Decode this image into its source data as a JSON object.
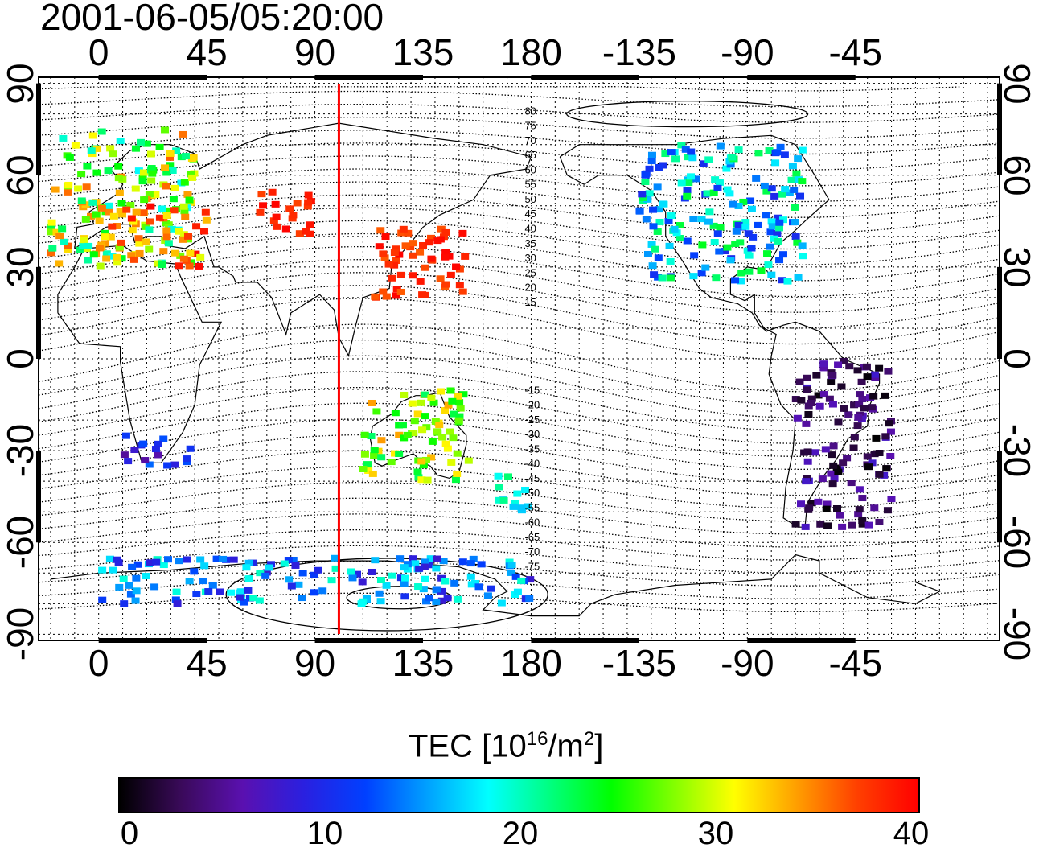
{
  "title": "2001-06-05/05:20:00",
  "axes": {
    "lon_ticks_top": [
      "0",
      "45",
      "90",
      "135",
      "180",
      "-135",
      "-90",
      "-45"
    ],
    "lon_ticks_bottom": [
      "0",
      "45",
      "90",
      "135",
      "180",
      "-135",
      "-90",
      "-45"
    ],
    "lat_ticks_left": [
      "90",
      "60",
      "30",
      "0",
      "-30",
      "-60",
      "-90"
    ],
    "lat_ticks_right": [
      "90",
      "60",
      "30",
      "0",
      "-30",
      "-60",
      "-90"
    ],
    "lon_range": [
      -25,
      375
    ],
    "lat_range": [
      -92,
      92
    ],
    "grid": "dotted every 10 degrees"
  },
  "contour_labels": [
    "80",
    "75",
    "70",
    "65",
    "60",
    "55",
    "50",
    "45",
    "40",
    "35",
    "30",
    "25",
    "20",
    "15",
    "-15",
    "-20",
    "-25",
    "-30",
    "-35",
    "-40",
    "-45",
    "-50",
    "-55",
    "-60",
    "-65",
    "-70",
    "-75"
  ],
  "terminator": {
    "longitude": 100,
    "color": "#ff0000"
  },
  "colorbar": {
    "label_prefix": "TEC  [10",
    "label_sup1": "16",
    "label_mid": "/m",
    "label_sup2": "2",
    "label_suffix": "]",
    "ticks": [
      "0",
      "10",
      "20",
      "30",
      "40"
    ],
    "range": [
      0,
      40
    ],
    "colormap": [
      "#000000",
      "#3a0a5a",
      "#5a10b0",
      "#2a20e0",
      "#0040ff",
      "#00a0ff",
      "#00ffff",
      "#00ff80",
      "#00ff00",
      "#80ff00",
      "#ffff00",
      "#ffa000",
      "#ff4000",
      "#ff0000"
    ]
  },
  "chart_data": {
    "type": "map",
    "title": "2001-06-05/05:20:00",
    "xlabel": "",
    "ylabel": "",
    "x_range": [
      -25,
      375
    ],
    "y_range": [
      -92,
      92
    ],
    "legend": "bottom colorbar",
    "regions": [
      {
        "lon": [
          -20,
          40
        ],
        "lat": [
          30,
          75
        ],
        "tec_range": [
          18,
          36
        ]
      },
      {
        "lon": [
          0,
          45
        ],
        "lat": [
          30,
          50
        ],
        "tec_range": [
          30,
          40
        ]
      },
      {
        "lon": [
          65,
          90
        ],
        "lat": [
          40,
          55
        ],
        "tec_range": [
          36,
          40
        ]
      },
      {
        "lon": [
          115,
          155
        ],
        "lat": [
          20,
          45
        ],
        "tec_range": [
          36,
          40
        ]
      },
      {
        "lon": [
          225,
          295
        ],
        "lat": [
          25,
          70
        ],
        "tec_range": [
          10,
          24
        ]
      },
      {
        "lon": [
          290,
          330
        ],
        "lat": [
          -55,
          0
        ],
        "tec_range": [
          0,
          8
        ]
      },
      {
        "lon": [
          10,
          40
        ],
        "lat": [
          -35,
          -25
        ],
        "tec_range": [
          5,
          14
        ]
      },
      {
        "lon": [
          110,
          155
        ],
        "lat": [
          -40,
          -10
        ],
        "tec_range": [
          22,
          34
        ]
      },
      {
        "lon": [
          165,
          180
        ],
        "lat": [
          -50,
          -35
        ],
        "tec_range": [
          16,
          22
        ]
      },
      {
        "lon": [
          0,
          180
        ],
        "lat": [
          -80,
          -65
        ],
        "tec_range": [
          8,
          20
        ]
      }
    ]
  }
}
